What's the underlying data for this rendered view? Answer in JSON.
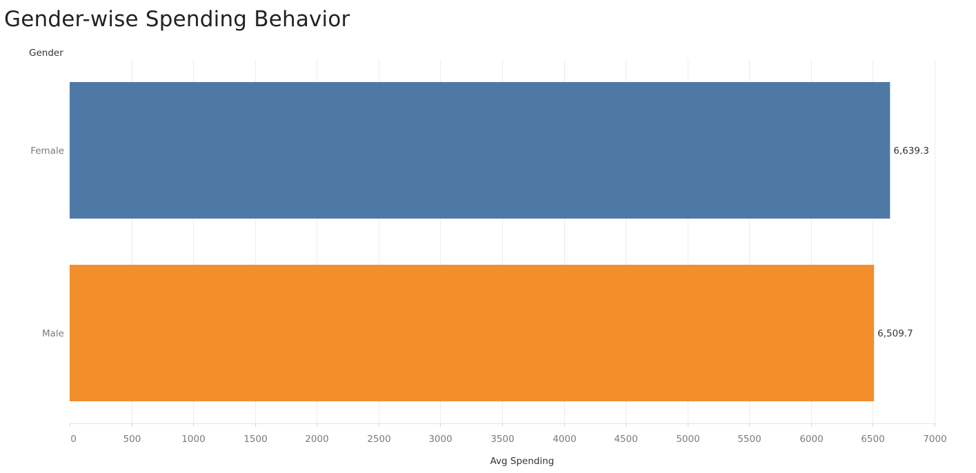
{
  "chart_data": {
    "type": "bar",
    "orientation": "horizontal",
    "title": "Gender-wise Spending Behavior",
    "category_axis_title": "Gender",
    "xlabel": "Avg Spending",
    "categories": [
      "Female",
      "Male"
    ],
    "values": [
      6639.3,
      6509.7
    ],
    "value_labels": [
      "6,639.3",
      "6,509.7"
    ],
    "colors": [
      "#4e79a7",
      "#f28e2b"
    ],
    "xlim": [
      0,
      7000
    ],
    "ticks": [
      0,
      500,
      1000,
      1500,
      2000,
      2500,
      3000,
      3500,
      4000,
      4500,
      5000,
      5500,
      6000,
      6500,
      7000
    ],
    "tick_labels": [
      "0",
      "500",
      "1000",
      "1500",
      "2000",
      "2500",
      "3000",
      "3500",
      "4000",
      "4500",
      "5000",
      "5500",
      "6000",
      "6500",
      "7000"
    ],
    "grid": true,
    "legend": "none"
  }
}
